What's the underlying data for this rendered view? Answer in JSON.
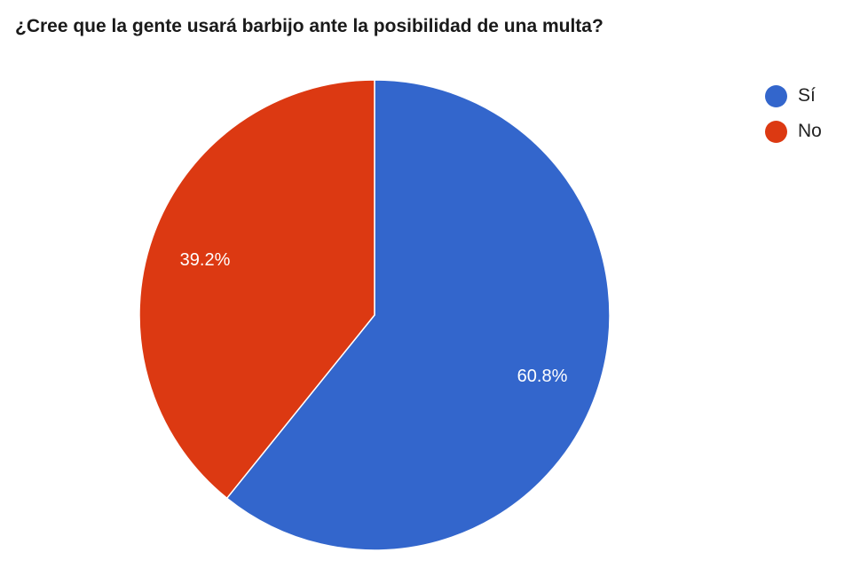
{
  "chart_data": {
    "type": "pie",
    "title": "¿Cree que la gente usará barbijo ante la posibilidad de una multa?",
    "categories": [
      "Sí",
      "No"
    ],
    "values": [
      60.8,
      39.2
    ],
    "labels": [
      "60.8%",
      "39.2%"
    ],
    "colors": [
      "#3366cc",
      "#dc3912"
    ],
    "legend_position": "right",
    "start_angle": "top, clockwise"
  },
  "title": "¿Cree que la gente usará barbijo ante la posibilidad de una multa?",
  "legend": [
    {
      "label": "Sí",
      "color": "#3366cc"
    },
    {
      "label": "No",
      "color": "#dc3912"
    }
  ],
  "slice_labels": {
    "si": "60.8%",
    "no": "39.2%"
  }
}
